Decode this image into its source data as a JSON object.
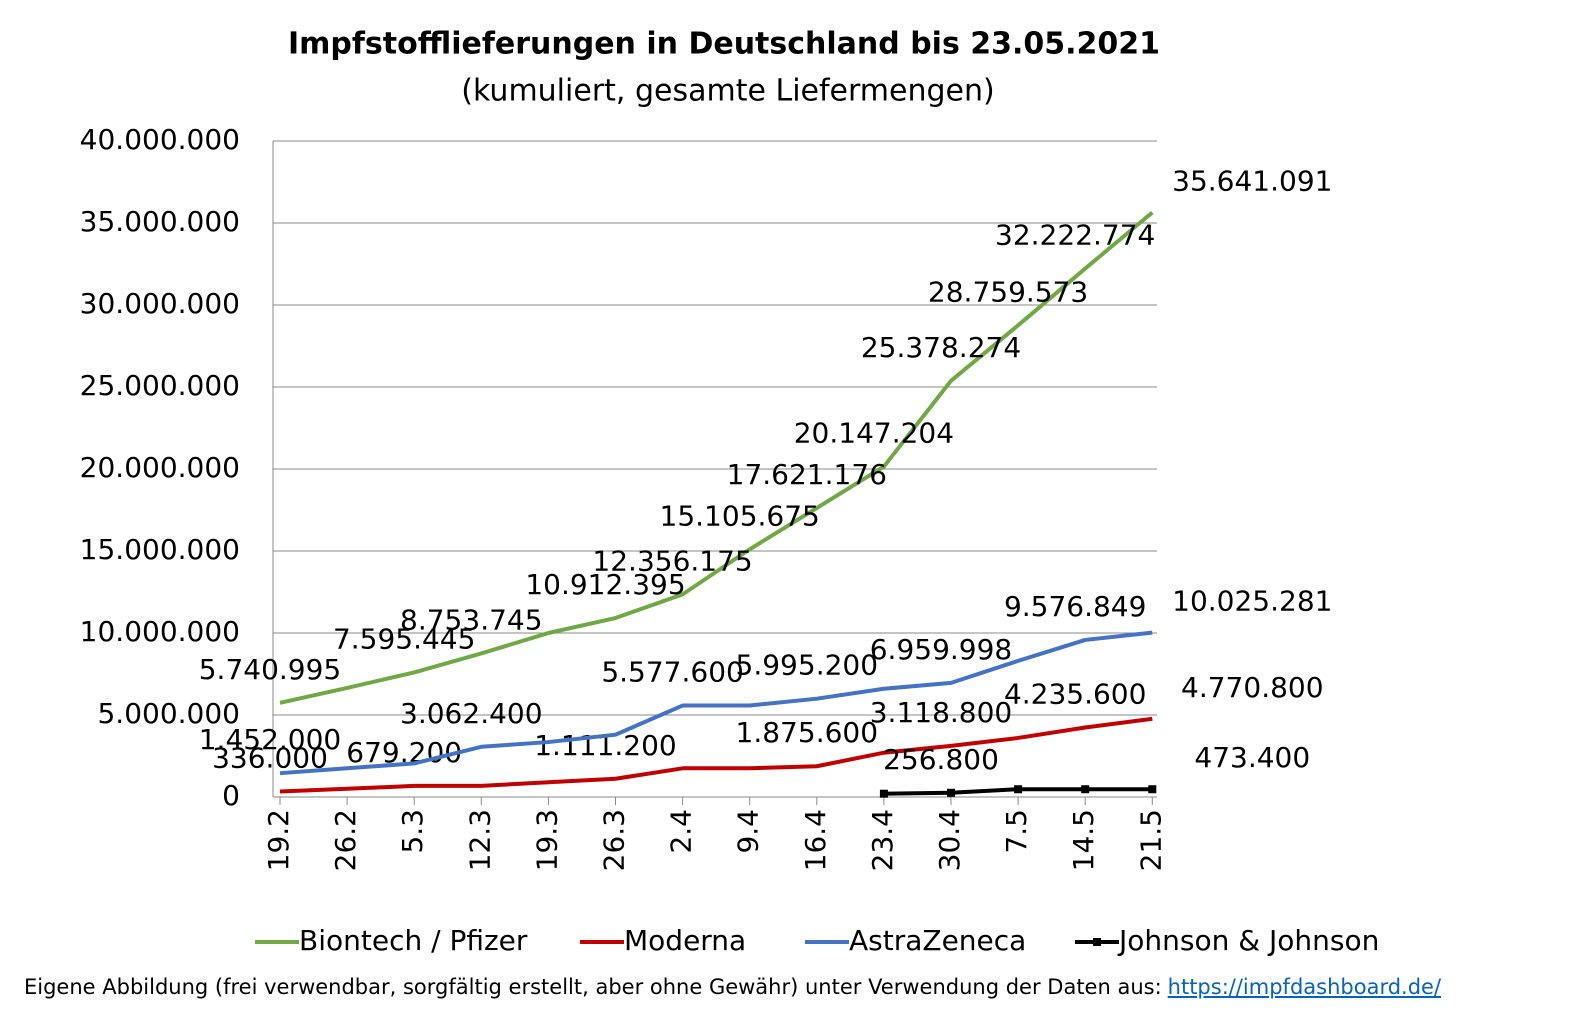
{
  "chart_data": {
    "type": "line",
    "title": "Impfstofflieferungen in Deutschland bis 23.05.2021",
    "subtitle": "(kumuliert, gesamte Liefermengen)",
    "categories": [
      "19.2",
      "26.2",
      "5.3",
      "12.3",
      "19.3",
      "26.3",
      "2.4",
      "9.4",
      "16.4",
      "23.4",
      "30.4",
      "7.5",
      "14.5",
      "21.5"
    ],
    "ylim": [
      0,
      40000000
    ],
    "yticks": [
      0,
      {
        "value": 5000000,
        "label": "5.000.000"
      },
      {
        "value": 10000000,
        "label": "10.000.000"
      },
      {
        "value": 15000000,
        "label": "15.000.000"
      },
      {
        "value": 20000000,
        "label": "20.000.000"
      },
      {
        "value": 25000000,
        "label": "25.000.000"
      },
      {
        "value": 30000000,
        "label": "30.000.000"
      },
      {
        "value": 35000000,
        "label": "35.000.000"
      },
      {
        "value": 40000000,
        "label": "40.000.000"
      }
    ],
    "grid": true,
    "series": [
      {
        "name": "Biontech / Pfizer",
        "color": "#70a845",
        "values": [
          5740995,
          6650000,
          7595445,
          8753745,
          10000000,
          10912395,
          12356175,
          15105675,
          17621176,
          20147204,
          25378274,
          28759573,
          32222774,
          35641091
        ],
        "value_labels": [
          "5.740.995",
          null,
          "7.595.445",
          "8.753.745",
          null,
          "10.912.395",
          "12.356.175",
          "15.105.675",
          "17.621.176",
          "20.147.204",
          "25.378.274",
          "28.759.573",
          "32.222.774",
          "35.641.091"
        ]
      },
      {
        "name": "Moderna",
        "color": "#c00000",
        "values": [
          336000,
          500000,
          679200,
          679200,
          900000,
          1111200,
          1750000,
          1750000,
          1875600,
          2700000,
          3118800,
          3600000,
          4235600,
          4770800
        ],
        "value_labels": [
          "336.000",
          null,
          "679.200",
          null,
          null,
          "1.111.200",
          null,
          null,
          "1.875.600",
          null,
          "3.118.800",
          null,
          "4.235.600",
          "4.770.800"
        ]
      },
      {
        "name": "AstraZeneca",
        "color": "#4472c4",
        "values": [
          1452000,
          1750000,
          2050000,
          3062400,
          3350000,
          3800000,
          5577600,
          5577600,
          5995200,
          6600000,
          6959998,
          8300000,
          9576849,
          10025281
        ],
        "value_labels": [
          "1.452.000",
          null,
          null,
          "3.062.400",
          null,
          null,
          "5.577.600",
          null,
          "5.995.200",
          null,
          "6.959.998",
          null,
          "9.576.849",
          "10.025.281"
        ]
      },
      {
        "name": "Johnson & Johnson",
        "color": "#000000",
        "values": [
          null,
          null,
          null,
          null,
          null,
          null,
          null,
          null,
          null,
          200000,
          256800,
          473400,
          473400,
          473400
        ],
        "value_labels": [
          null,
          null,
          null,
          null,
          null,
          null,
          null,
          null,
          null,
          null,
          "256.800",
          null,
          null,
          "473.400"
        ]
      }
    ],
    "source": "Eigene Abbildung (frei verwendbar, sorgfältig erstellt, aber ohne Gewähr) unter Verwendung der Daten aus:",
    "source_link": "https://impfdashboard.de/"
  }
}
